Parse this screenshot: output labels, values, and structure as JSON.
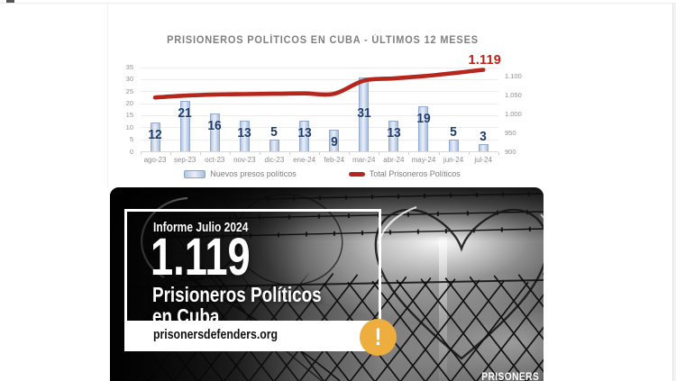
{
  "chart": {
    "title": "PRISIONEROS POLÍTICOS EN CUBA - ÚLTIMOS 12 MESES",
    "legend": {
      "bars": "Nuevos presos políticos",
      "line": "Total Prisoneros Políticos"
    },
    "colors": {
      "bar_fill": "#c6d5ec",
      "bar_border": "#92a9cd",
      "bar_label": "#1d3b6c",
      "line": "#b5261c",
      "annotation": "#bf2016",
      "title": "#7f7f7f",
      "axis_text": "#8c8c8c",
      "grid": "#ececec"
    }
  },
  "chart_data": {
    "type": "bar",
    "title": "PRISIONEROS POLÍTICOS EN CUBA - ÚLTIMOS 12 MESES",
    "categories": [
      "ago-23",
      "sep-23",
      "oct-23",
      "nov-23",
      "dic-23",
      "ene-24",
      "feb-24",
      "mar-24",
      "abr-24",
      "may-24",
      "jun-24",
      "jul-24"
    ],
    "series": [
      {
        "name": "Nuevos presos políticos",
        "type": "bar",
        "axis": "left",
        "values": [
          12,
          21,
          16,
          13,
          5,
          13,
          9,
          31,
          13,
          19,
          5,
          3
        ]
      },
      {
        "name": "Total Prisoneros Políticos",
        "type": "line",
        "axis": "right",
        "values": [
          1045,
          1050,
          1053,
          1054,
          1055,
          1056,
          1055,
          1090,
          1096,
          1102,
          1110,
          1119
        ]
      }
    ],
    "left_axis": {
      "ticks": [
        0,
        5,
        10,
        15,
        20,
        25,
        30,
        35
      ],
      "range": [
        0,
        35
      ]
    },
    "right_axis": {
      "tick_labels": [
        "900",
        "950",
        "1.000",
        "1.050",
        "1.100"
      ],
      "tick_values": [
        900,
        950,
        1000,
        1050,
        1100
      ],
      "range": [
        900,
        1125
      ]
    },
    "annotation": {
      "text": "1.119",
      "series": "Total Prisoneros Políticos",
      "category": "jul-24"
    },
    "legend_position": "bottom",
    "grid": "horizontal"
  },
  "poster": {
    "kicker": "Informe Julio 2024",
    "big_number": "1.119",
    "title_line1": "Prisioneros Políticos",
    "title_line2": "en Cuba",
    "website": "prisonersdefenders.org",
    "watermark": "PRISONERS",
    "colors": {
      "alert": "#edae3e",
      "box_border": "#ffffff",
      "footer_bg": "#ffffff",
      "text": "#ffffff",
      "footer_text": "#111111"
    }
  }
}
